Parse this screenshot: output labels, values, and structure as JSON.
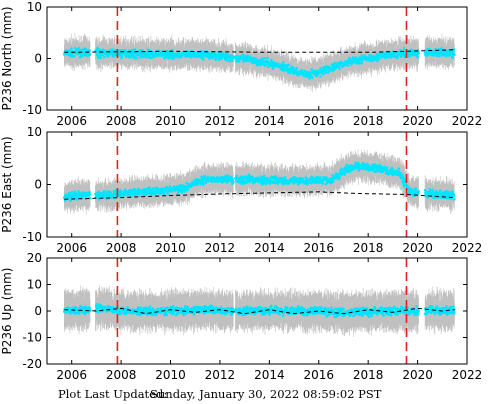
{
  "footer": {
    "label": "Plot Last Updated:",
    "value": "Sunday, January 30, 2022 08:59:02 PST"
  },
  "colors": {
    "error_bars": "#c0c0c0",
    "points": "#00e5ff",
    "trend": "#000000",
    "event_lines": "#e32222",
    "frame": "#000000"
  },
  "chart_data": [
    {
      "type": "scatter",
      "title": "",
      "xlabel": "",
      "ylabel": "P236 North (mm)",
      "xlim": [
        2005.0,
        2022.0
      ],
      "ylim": [
        -10,
        10
      ],
      "xticks": [
        2006,
        2008,
        2010,
        2012,
        2014,
        2016,
        2018,
        2020,
        2022
      ],
      "yticks": [
        -10,
        0,
        10
      ],
      "data_range": [
        2005.7,
        2021.5
      ],
      "error_bar_mm": 3,
      "event_lines_x": [
        2007.85,
        2019.55
      ],
      "series": [
        {
          "role": "observations",
          "x": [
            2005.7,
            2006.5,
            2007.5,
            2008.5,
            2009.5,
            2010.5,
            2011.5,
            2012.5,
            2013.5,
            2014.5,
            2015.0,
            2015.5,
            2016.0,
            2016.5,
            2017.0,
            2017.5,
            2018.5,
            2019.5,
            2020.5,
            2021.5
          ],
          "values": [
            1.0,
            1.2,
            1.0,
            1.0,
            0.8,
            0.8,
            0.7,
            0.3,
            -0.5,
            -1.5,
            -2.5,
            -3.0,
            -2.8,
            -1.8,
            -1.0,
            -0.3,
            0.5,
            1.0,
            1.2,
            1.0
          ]
        },
        {
          "role": "trend",
          "x": [
            2005.7,
            2008,
            2010,
            2012,
            2014,
            2016,
            2018,
            2019.55,
            2021.5
          ],
          "values": [
            1.2,
            1.3,
            1.4,
            1.3,
            1.2,
            1.2,
            1.2,
            1.4,
            1.7
          ]
        }
      ]
    },
    {
      "type": "scatter",
      "title": "",
      "xlabel": "",
      "ylabel": "P236 East (mm)",
      "xlim": [
        2005.0,
        2022.0
      ],
      "ylim": [
        -10,
        10
      ],
      "xticks": [
        2006,
        2008,
        2010,
        2012,
        2014,
        2016,
        2018,
        2020,
        2022
      ],
      "yticks": [
        -10,
        0,
        10
      ],
      "data_range": [
        2005.7,
        2021.5
      ],
      "error_bar_mm": 3,
      "event_lines_x": [
        2007.85,
        2019.55
      ],
      "series": [
        {
          "role": "observations",
          "x": [
            2005.7,
            2006.5,
            2007.5,
            2008.5,
            2009.5,
            2010.5,
            2011.0,
            2011.5,
            2012.5,
            2013.5,
            2014.5,
            2015.5,
            2016.5,
            2017.0,
            2017.5,
            2018.5,
            2019.3,
            2019.7,
            2020.5,
            2021.5
          ],
          "values": [
            -2.5,
            -2.0,
            -2.0,
            -1.5,
            -1.2,
            -0.8,
            0.5,
            1.0,
            1.0,
            0.8,
            0.8,
            0.8,
            0.8,
            2.5,
            3.5,
            3.0,
            2.0,
            -1.5,
            -1.8,
            -2.0
          ]
        },
        {
          "role": "trend",
          "x": [
            2005.7,
            2008,
            2010,
            2012,
            2014,
            2016,
            2017.5,
            2019.55,
            2021.5
          ],
          "values": [
            -2.8,
            -2.5,
            -2.1,
            -1.8,
            -1.6,
            -1.4,
            -1.7,
            -1.9,
            -2.5
          ]
        }
      ]
    },
    {
      "type": "scatter",
      "title": "",
      "xlabel": "",
      "ylabel": "P236 Up (mm)",
      "xlim": [
        2005.0,
        2022.0
      ],
      "ylim": [
        -20,
        20
      ],
      "xticks": [
        2006,
        2008,
        2010,
        2012,
        2014,
        2016,
        2018,
        2020,
        2022
      ],
      "yticks": [
        -20,
        -10,
        0,
        10,
        20
      ],
      "data_range": [
        2005.7,
        2021.5
      ],
      "error_bar_mm": 8,
      "event_lines_x": [
        2007.85,
        2019.55
      ],
      "series": [
        {
          "role": "observations",
          "x": [
            2005.7,
            2007,
            2008.5,
            2010,
            2011.5,
            2013,
            2014.5,
            2016,
            2017.5,
            2019,
            2020.5,
            2021.5
          ],
          "values": [
            0,
            1,
            0,
            0,
            0.5,
            0,
            0,
            0,
            -0.5,
            0,
            0,
            0
          ]
        },
        {
          "role": "trend",
          "x": [
            2005.7,
            2007,
            2008,
            2009,
            2010,
            2011,
            2012,
            2013,
            2014,
            2015,
            2016,
            2017,
            2018,
            2019,
            2020,
            2021,
            2021.5
          ],
          "values": [
            0.5,
            0,
            1,
            -1,
            0.5,
            -0.5,
            0.5,
            -1,
            0.5,
            -1,
            0,
            -1,
            0.5,
            -0.5,
            1,
            0,
            0.5
          ]
        }
      ]
    }
  ]
}
